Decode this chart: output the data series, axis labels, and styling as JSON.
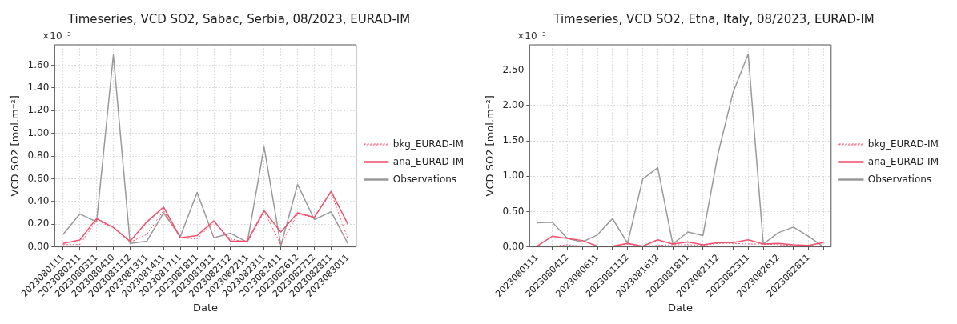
{
  "chart_data": [
    {
      "type": "line",
      "title": "Timeseries, VCD SO2, Sabac, Serbia, 08/2023, EURAD-IM",
      "xlabel": "Date",
      "ylabel": "VCD SO2 [mol.m⁻²]",
      "annotations": [
        "×10⁻³"
      ],
      "categories": [
        "2023080111",
        "2023080211",
        "2023080311",
        "2023080410",
        "2023081112",
        "2023081311",
        "2023081411",
        "2023081711",
        "2023081811",
        "2023081911",
        "2023082112",
        "2023082211",
        "2023082311",
        "2023082411",
        "2023082612",
        "2023082712",
        "2023082811",
        "2023083011"
      ],
      "series": [
        {
          "name": "bkg_EURAD-IM",
          "color": "#f0506e",
          "line_style": "dotted",
          "values": [
            0.02,
            0.02,
            0.23,
            0.17,
            0.04,
            0.11,
            0.32,
            0.08,
            0.07,
            0.22,
            0.07,
            0.04,
            0.31,
            0.02,
            0.29,
            0.26,
            0.48,
            0.07
          ]
        },
        {
          "name": "ana_EURAD-IM",
          "color": "#f0506e",
          "line_style": "solid",
          "values": [
            0.03,
            0.06,
            0.25,
            0.17,
            0.05,
            0.22,
            0.35,
            0.08,
            0.1,
            0.23,
            0.05,
            0.05,
            0.32,
            0.13,
            0.3,
            0.26,
            0.49,
            0.2
          ]
        },
        {
          "name": "Observations",
          "color": "#999999",
          "line_style": "solid",
          "values": [
            0.11,
            0.29,
            0.22,
            1.69,
            0.03,
            0.05,
            0.3,
            0.09,
            0.48,
            0.08,
            0.12,
            0.04,
            0.88,
            0.01,
            0.55,
            0.24,
            0.31,
            0.03
          ]
        }
      ],
      "ylim": [
        0,
        1.78
      ],
      "yticks": [
        {
          "value": 0,
          "label": "0.00"
        },
        {
          "value": 0.2,
          "label": "0.20"
        },
        {
          "value": 0.4,
          "label": "0.40"
        },
        {
          "value": 0.6,
          "label": "0.60"
        },
        {
          "value": 0.8,
          "label": "0.80"
        },
        {
          "value": 1.0,
          "label": "1.00"
        },
        {
          "value": 1.2,
          "label": "1.20"
        },
        {
          "value": 1.4,
          "label": "1.40"
        },
        {
          "value": 1.6,
          "label": "1.60"
        }
      ],
      "grid": true,
      "legend": "right"
    },
    {
      "type": "line",
      "title": "Timeseries, VCD SO2, Etna, Italy, 08/2023, EURAD-IM",
      "xlabel": "Date",
      "ylabel": "VCD SO2 [mol.m⁻²]",
      "annotations": [
        "×10⁻³"
      ],
      "categories": [
        "2023080111",
        null,
        "2023080412",
        null,
        "2023080611",
        null,
        "2023081112",
        null,
        "2023081612",
        null,
        "2023081811",
        null,
        "2023082112",
        null,
        "2023082311",
        null,
        "2023082612",
        null,
        "2023082811",
        null
      ],
      "series": [
        {
          "name": "bkg_EURAD-IM",
          "color": "#f0506e",
          "line_style": "dotted",
          "values": [
            0.0,
            0.01,
            0.03,
            0.01,
            0.01,
            0.01,
            0.04,
            0.01,
            0.02,
            0.03,
            0.03,
            0.02,
            0.05,
            0.05,
            0.04,
            0.04,
            0.03,
            0.02,
            0.02,
            0.06
          ]
        },
        {
          "name": "ana_EURAD-IM",
          "color": "#f0506e",
          "line_style": "solid",
          "values": [
            0.01,
            0.15,
            0.12,
            0.09,
            0.01,
            0.01,
            0.05,
            0.01,
            0.1,
            0.04,
            0.07,
            0.03,
            0.06,
            0.06,
            0.1,
            0.04,
            0.05,
            0.03,
            0.02,
            0.06
          ]
        },
        {
          "name": "Observations",
          "color": "#999999",
          "line_style": "solid",
          "values": [
            0.34,
            0.35,
            0.12,
            0.07,
            0.17,
            0.4,
            0.05,
            0.96,
            1.12,
            0.04,
            0.21,
            0.16,
            1.32,
            2.19,
            2.73,
            0.04,
            0.2,
            0.28,
            0.15,
            0.0
          ]
        }
      ],
      "ylim": [
        0,
        2.86
      ],
      "yticks": [
        {
          "value": 0,
          "label": "0.00"
        },
        {
          "value": 0.5,
          "label": "0.50"
        },
        {
          "value": 1.0,
          "label": "1.00"
        },
        {
          "value": 1.5,
          "label": "1.50"
        },
        {
          "value": 2.0,
          "label": "2.00"
        },
        {
          "value": 2.5,
          "label": "2.50"
        }
      ],
      "grid": true,
      "legend": "right"
    }
  ]
}
